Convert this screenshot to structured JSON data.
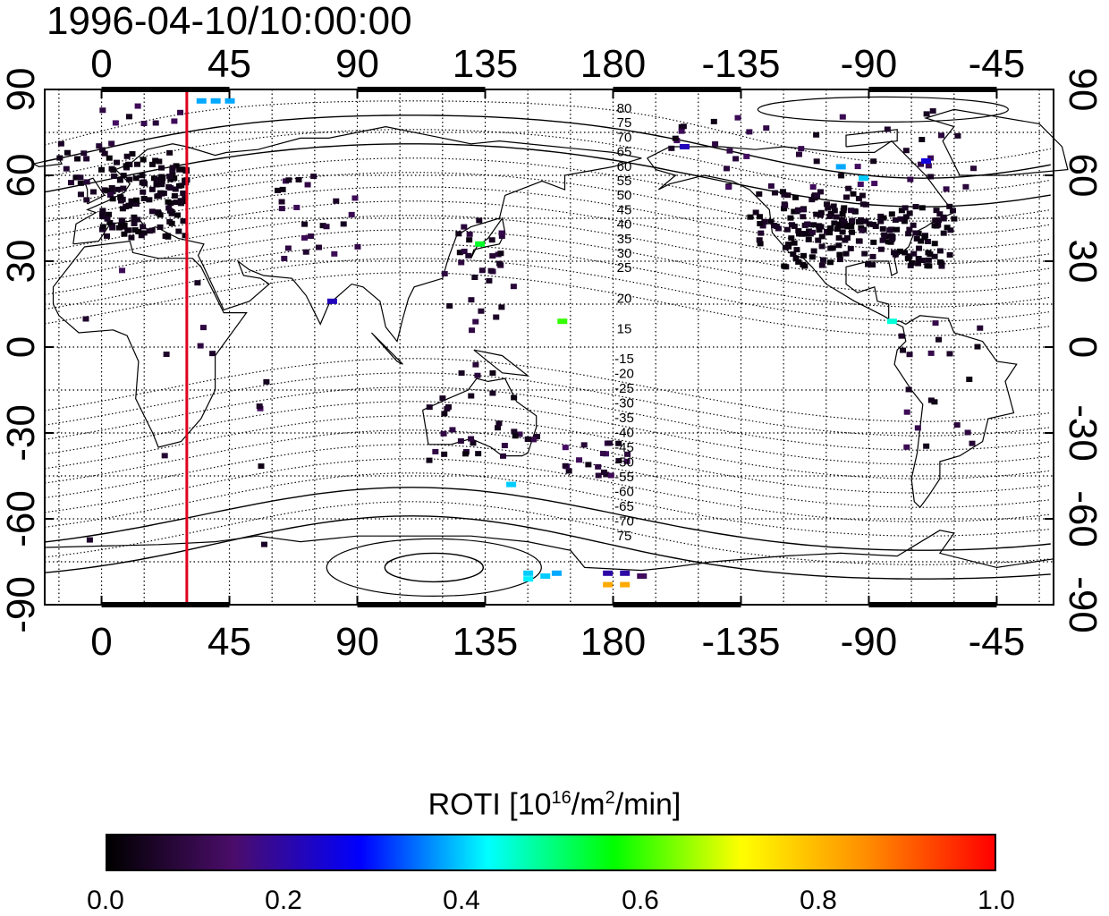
{
  "title": "1996-04-10/10:00:00",
  "axes": {
    "x_ticks": [
      "0",
      "45",
      "90",
      "135",
      "180",
      "-135",
      "-90",
      "-45"
    ],
    "x_tick_lon": [
      0,
      45,
      90,
      135,
      180,
      225,
      270,
      315
    ],
    "y_ticks": [
      "90",
      "60",
      "30",
      "0",
      "-30",
      "-60",
      "-90"
    ],
    "y_tick_lat": [
      90,
      60,
      30,
      0,
      -30,
      -60,
      -90
    ],
    "lon_range": [
      -20,
      335
    ],
    "lat_range": [
      -90,
      90
    ],
    "grid": true
  },
  "magnetic_latitude_labels": {
    "north": [
      "80",
      "75",
      "70",
      "65",
      "60",
      "55",
      "50",
      "45",
      "40",
      "35",
      "30",
      "25",
      "20",
      "15"
    ],
    "south": [
      "-15",
      "-20",
      "-25",
      "-30",
      "-35",
      "-40",
      "-45",
      "-50",
      "-55",
      "-60",
      "-65",
      "-70",
      "75"
    ]
  },
  "marker": {
    "longitude": 30,
    "color": "#e0001a"
  },
  "colorbar": {
    "title_prefix": "ROTI  [10",
    "title_sup1": "16",
    "title_mid": "/m",
    "title_sup2": "2",
    "title_suffix": "/min]",
    "ticks": [
      "0.0",
      "0.2",
      "0.4",
      "0.6",
      "0.8",
      "1.0"
    ],
    "range": [
      0,
      1
    ],
    "colors": [
      "#000000",
      "#4b0d6b",
      "#0000ff",
      "#00ffff",
      "#00ff00",
      "#ffff00",
      "#ff8c00",
      "#ff0000"
    ]
  },
  "roti_points": [
    {
      "lon": 35,
      "lat": 86,
      "v": 0.38
    },
    {
      "lon": 40,
      "lat": 86,
      "v": 0.38
    },
    {
      "lon": 45,
      "lat": 86,
      "v": 0.38
    },
    {
      "lon": 178,
      "lat": -79,
      "v": 0.2
    },
    {
      "lon": 184,
      "lat": -79,
      "v": 0.2
    },
    {
      "lon": 190,
      "lat": -80,
      "v": 0.12
    },
    {
      "lon": 178,
      "lat": -83,
      "v": 0.82
    },
    {
      "lon": 184,
      "lat": -83,
      "v": 0.82
    },
    {
      "lon": 150,
      "lat": -79,
      "v": 0.4
    },
    {
      "lon": 156,
      "lat": -80,
      "v": 0.4
    },
    {
      "lon": 160,
      "lat": -79,
      "v": 0.38
    },
    {
      "lon": 150,
      "lat": -81,
      "v": 0.42
    },
    {
      "lon": 133,
      "lat": 36,
      "v": 0.55
    },
    {
      "lon": 162,
      "lat": 9,
      "v": 0.6
    },
    {
      "lon": 144,
      "lat": -48,
      "v": 0.4
    },
    {
      "lon": 81,
      "lat": 16,
      "v": 0.22
    },
    {
      "lon": 260,
      "lat": 63,
      "v": 0.38
    },
    {
      "lon": 268,
      "lat": 59,
      "v": 0.4
    },
    {
      "lon": 278,
      "lat": 9,
      "v": 0.45
    },
    {
      "lon": 205,
      "lat": 70,
      "v": 0.22
    },
    {
      "lon": 290,
      "lat": 65,
      "v": 0.25
    }
  ],
  "roti_clusters": [
    {
      "lon": [
        0,
        30
      ],
      "lat": [
        38,
        68
      ],
      "n": 140,
      "v": 0.03
    },
    {
      "lon": [
        -15,
        5
      ],
      "lat": [
        48,
        72
      ],
      "n": 25,
      "v": 0.05
    },
    {
      "lon": [
        240,
        300
      ],
      "lat": [
        28,
        50
      ],
      "n": 160,
      "v": 0.03
    },
    {
      "lon": [
        228,
        270
      ],
      "lat": [
        35,
        55
      ],
      "n": 60,
      "v": 0.04
    },
    {
      "lon": [
        200,
        310
      ],
      "lat": [
        55,
        83
      ],
      "n": 45,
      "v": 0.08
    },
    {
      "lon": [
        60,
        90
      ],
      "lat": [
        30,
        60
      ],
      "n": 25,
      "v": 0.07
    },
    {
      "lon": [
        120,
        145
      ],
      "lat": [
        -10,
        45
      ],
      "n": 35,
      "v": 0.06
    },
    {
      "lon": [
        115,
        155
      ],
      "lat": [
        -40,
        -15
      ],
      "n": 30,
      "v": 0.06
    },
    {
      "lon": [
        160,
        185
      ],
      "lat": [
        -45,
        -33
      ],
      "n": 20,
      "v": 0.08
    },
    {
      "lon": [
        280,
        310
      ],
      "lat": [
        -35,
        10
      ],
      "n": 20,
      "v": 0.07
    },
    {
      "lon": [
        -15,
        60
      ],
      "lat": [
        -80,
        30
      ],
      "n": 14,
      "v": 0.08
    },
    {
      "lon": [
        -10,
        30
      ],
      "lat": [
        78,
        85
      ],
      "n": 8,
      "v": 0.08
    }
  ]
}
